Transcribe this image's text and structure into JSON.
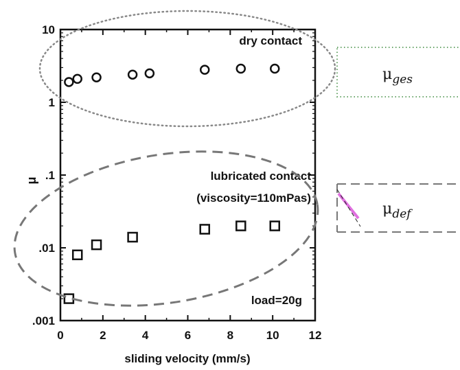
{
  "chart_data": {
    "type": "scatter",
    "title": "",
    "xlabel": "sliding velocity (mm/s)",
    "ylabel": "μ",
    "xlim": [
      0,
      12
    ],
    "ylim": [
      0.001,
      10
    ],
    "yscale": "log",
    "grid": false,
    "x_ticks": [
      "0",
      "2",
      "4",
      "6",
      "8",
      "10",
      "12"
    ],
    "y_ticks": [
      ".001",
      ".01",
      ".1",
      "1",
      "10"
    ],
    "series": [
      {
        "name": "dry contact",
        "marker": "circle",
        "x": [
          0.4,
          0.8,
          1.7,
          3.4,
          4.2,
          6.8,
          8.5,
          10.1
        ],
        "y": [
          1.9,
          2.1,
          2.2,
          2.4,
          2.5,
          2.8,
          2.9,
          2.9
        ]
      },
      {
        "name": "lubricated contact",
        "marker": "square",
        "x": [
          0.4,
          0.8,
          1.7,
          3.4,
          6.8,
          8.5,
          10.1
        ],
        "y": [
          0.002,
          0.008,
          0.011,
          0.014,
          0.018,
          0.02,
          0.02
        ]
      }
    ],
    "annotations": {
      "dry": "dry contact",
      "lub_line1": "lubricated contact",
      "lub_line2": "(viscosity=110mPas)",
      "load": "load=20g"
    }
  },
  "side_labels": {
    "ges": {
      "base": "μ",
      "sub": "ges"
    },
    "def": {
      "base": "μ",
      "sub": "def"
    }
  },
  "colors": {
    "marker": "#111111",
    "dry_outline": "#888888",
    "dry_box": "#6aa56a",
    "lub_outline": "#777777",
    "def_accent": "#e070e0"
  }
}
